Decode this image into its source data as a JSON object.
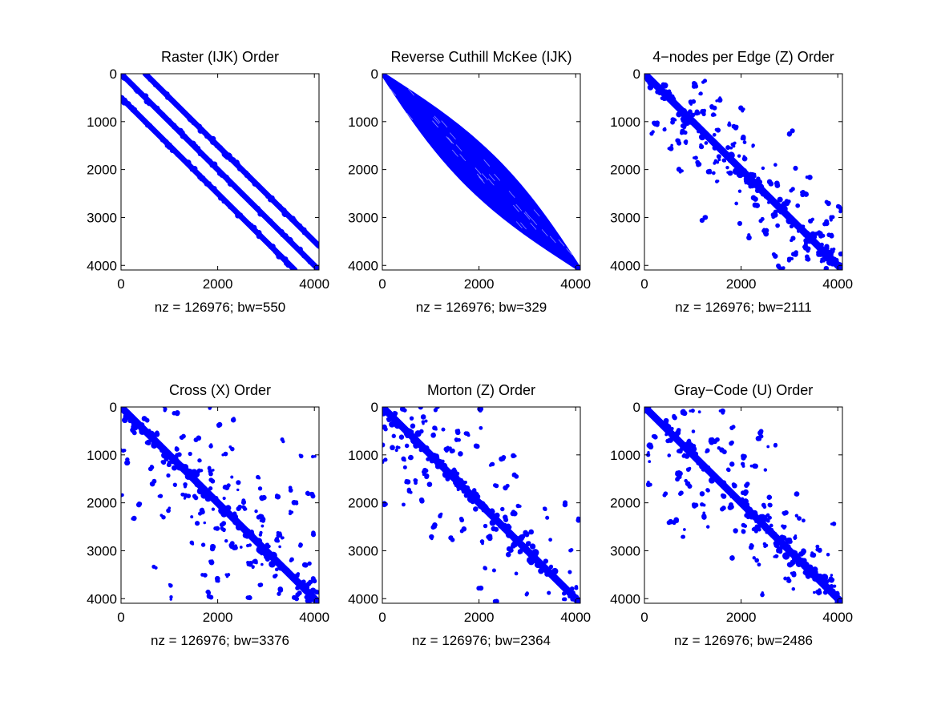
{
  "chart_data": [
    {
      "type": "scatter",
      "subtype": "sparsity-pattern",
      "title": "Raster (IJK) Order",
      "xlabel": "nz = 126976; bw=550",
      "xlim": [
        0,
        4096
      ],
      "ylim": [
        0,
        4096
      ],
      "y_reversed": true,
      "xticks": [
        0,
        2000,
        4000
      ],
      "yticks": [
        0,
        1000,
        2000,
        3000,
        4000
      ],
      "grid": false,
      "marker_color": "#0000ff",
      "pattern": {
        "kind": "offset_diagonals",
        "offsets": [
          0,
          500,
          -500
        ],
        "band_halfwidth": 60,
        "density": "full"
      }
    },
    {
      "type": "scatter",
      "subtype": "sparsity-pattern",
      "title": "Reverse Cuthill McKee (IJK)",
      "xlabel": "nz = 126976; bw=329",
      "xlim": [
        0,
        4096
      ],
      "ylim": [
        0,
        4096
      ],
      "y_reversed": true,
      "xticks": [
        0,
        2000,
        4000
      ],
      "yticks": [
        0,
        1000,
        2000,
        3000,
        4000
      ],
      "grid": false,
      "marker_color": "#0000ff",
      "pattern": {
        "kind": "variable_band",
        "max_halfwidth": 329,
        "density": "full"
      }
    },
    {
      "type": "scatter",
      "subtype": "sparsity-pattern",
      "title": "4−nodes per Edge (Z) Order",
      "xlabel": "nz = 126976; bw=2111",
      "xlim": [
        0,
        4096
      ],
      "ylim": [
        0,
        4096
      ],
      "y_reversed": true,
      "xticks": [
        0,
        2000,
        4000
      ],
      "yticks": [
        0,
        1000,
        2000,
        3000,
        4000
      ],
      "grid": false,
      "marker_color": "#0000ff",
      "pattern": {
        "kind": "clustered_blocks",
        "bandwidth": 2111,
        "density": "scattered"
      }
    },
    {
      "type": "scatter",
      "subtype": "sparsity-pattern",
      "title": "Cross (X) Order",
      "xlabel": "nz = 126976; bw=3376",
      "xlim": [
        0,
        4096
      ],
      "ylim": [
        0,
        4096
      ],
      "y_reversed": true,
      "xticks": [
        0,
        2000,
        4000
      ],
      "yticks": [
        0,
        1000,
        2000,
        3000,
        4000
      ],
      "grid": false,
      "marker_color": "#0000ff",
      "pattern": {
        "kind": "clustered_blocks",
        "bandwidth": 3376,
        "density": "scattered"
      }
    },
    {
      "type": "scatter",
      "subtype": "sparsity-pattern",
      "title": "Morton (Z) Order",
      "xlabel": "nz = 126976; bw=2364",
      "xlim": [
        0,
        4096
      ],
      "ylim": [
        0,
        4096
      ],
      "y_reversed": true,
      "xticks": [
        0,
        2000,
        4000
      ],
      "yticks": [
        0,
        1000,
        2000,
        3000,
        4000
      ],
      "grid": false,
      "marker_color": "#0000ff",
      "pattern": {
        "kind": "clustered_blocks",
        "bandwidth": 2364,
        "density": "scattered"
      }
    },
    {
      "type": "scatter",
      "subtype": "sparsity-pattern",
      "title": "Gray−Code (U) Order",
      "xlabel": "nz = 126976; bw=2486",
      "xlim": [
        0,
        4096
      ],
      "ylim": [
        0,
        4096
      ],
      "y_reversed": true,
      "xticks": [
        0,
        2000,
        4000
      ],
      "yticks": [
        0,
        1000,
        2000,
        3000,
        4000
      ],
      "grid": false,
      "marker_color": "#0000ff",
      "pattern": {
        "kind": "clustered_blocks",
        "bandwidth": 2486,
        "density": "scattered"
      }
    }
  ]
}
